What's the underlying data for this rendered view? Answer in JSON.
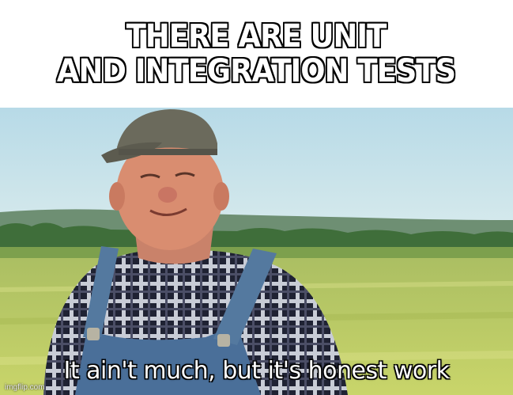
{
  "meme": {
    "top_caption": "THERE ARE UNIT\nAND INTEGRATION TESTS",
    "image_subtitle": "It ain't much, but it's honest work",
    "watermark": "imgflip.com"
  },
  "colors": {
    "sky": "#a9d3e2",
    "field": "#b9c95a",
    "treeline": "#3f6e3a",
    "cap": "#6b6a5c",
    "overalls": "#4a6f99"
  }
}
